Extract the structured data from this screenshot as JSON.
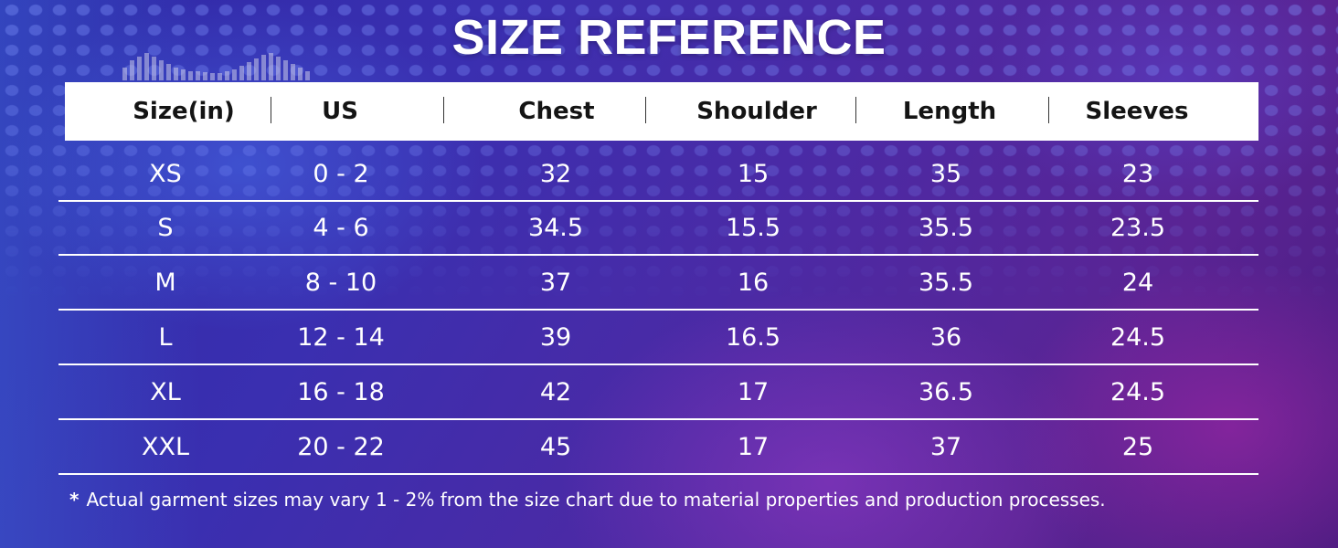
{
  "title": "SIZE REFERENCE",
  "table": {
    "headers": [
      "Size(in)",
      "US",
      "Chest",
      "Shoulder",
      "Length",
      "Sleeves"
    ],
    "rows": [
      [
        "XS",
        "0 - 2",
        "32",
        "15",
        "35",
        "23"
      ],
      [
        "S",
        "4 - 6",
        "34.5",
        "15.5",
        "35.5",
        "23.5"
      ],
      [
        "M",
        "8 - 10",
        "37",
        "16",
        "35.5",
        "24"
      ],
      [
        "L",
        "12 - 14",
        "39",
        "16.5",
        "36",
        "24.5"
      ],
      [
        "XL",
        "16 - 18",
        "42",
        "17",
        "36.5",
        "24.5"
      ],
      [
        "XXL",
        "20 - 22",
        "45",
        "17",
        "37",
        "25"
      ]
    ]
  },
  "footnote": {
    "marker": "*",
    "text": "Actual garment sizes may vary 1 - 2% from the size chart due to material properties and production processes."
  },
  "colors": {
    "background_primary": "#3a2fb0",
    "background_secondary": "#5a2494",
    "header_bg": "#ffffff",
    "header_text": "#141414",
    "text": "#ffffff"
  }
}
